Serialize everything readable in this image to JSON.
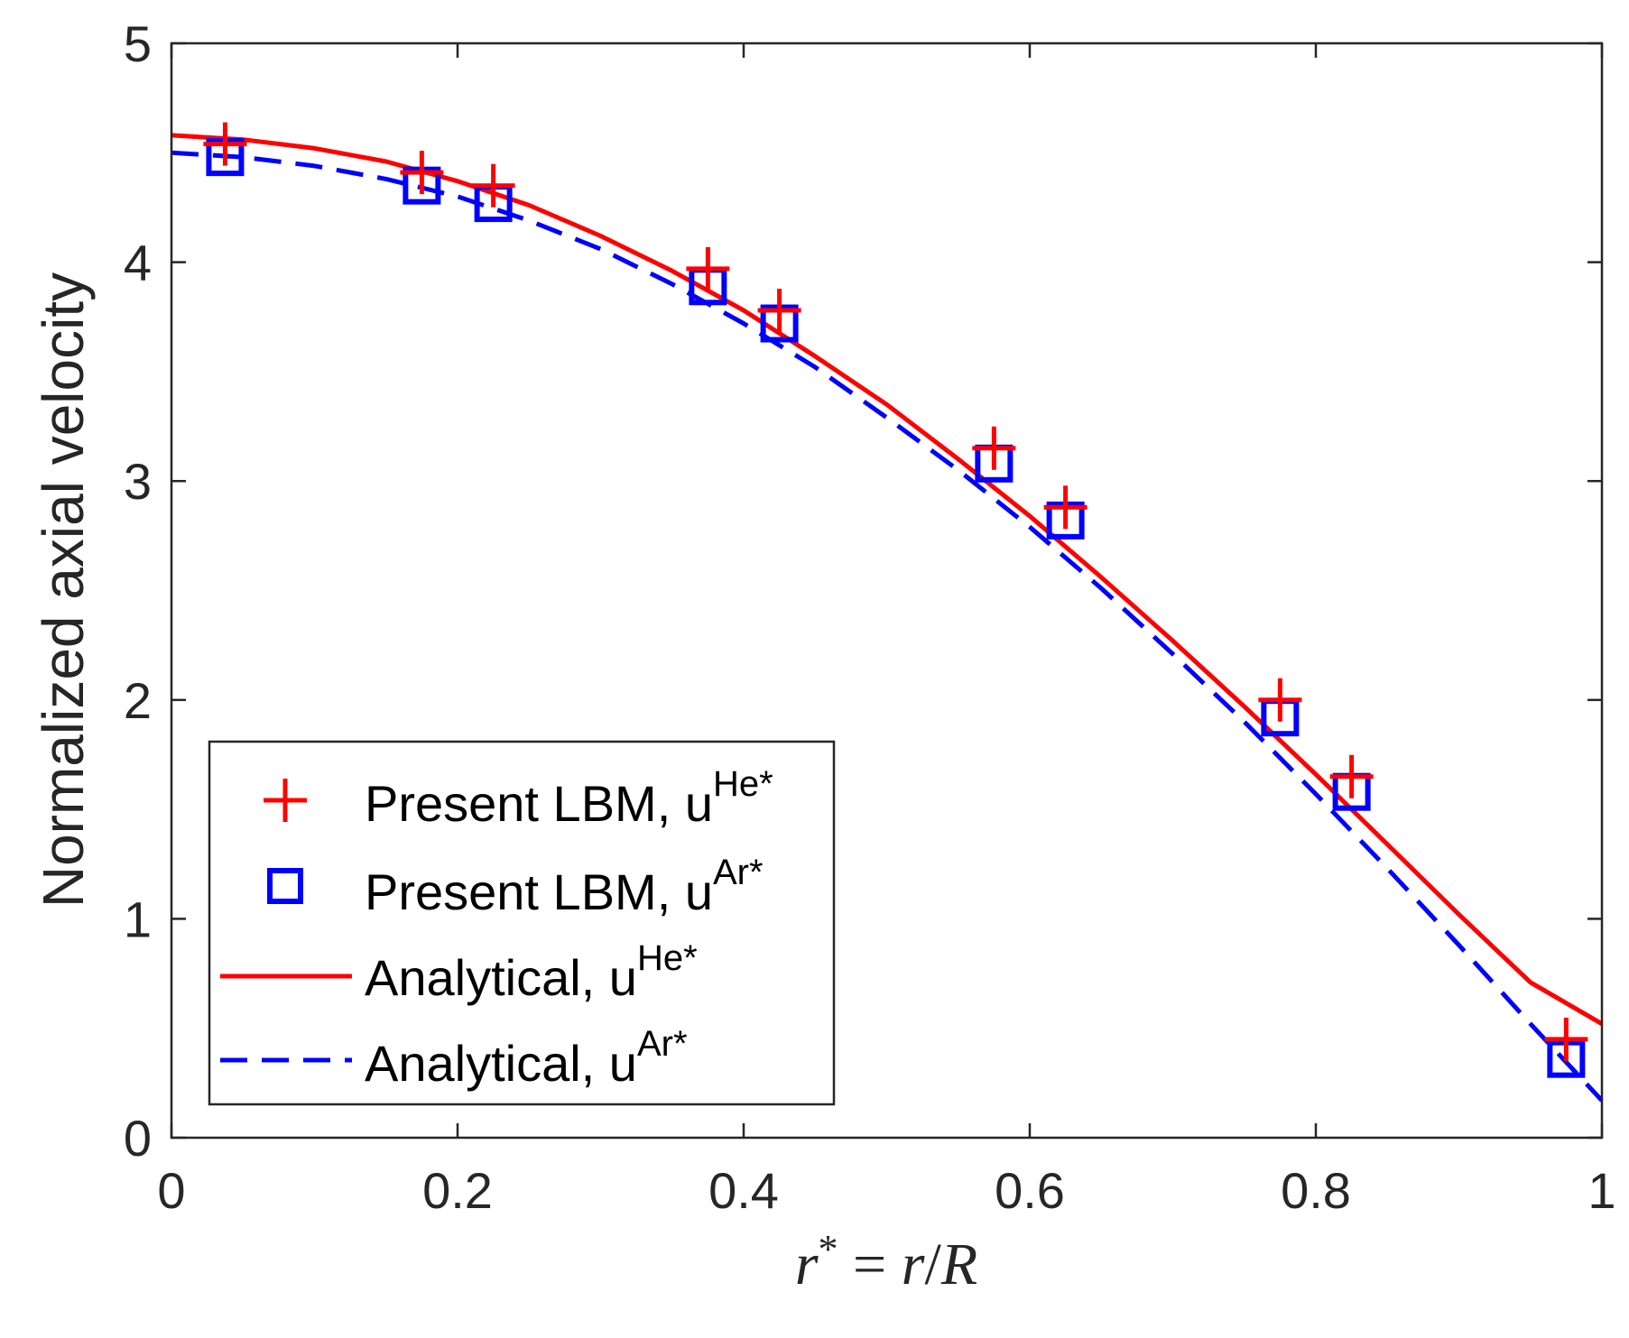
{
  "colors": {
    "he": "#ff0000",
    "ar": "#0000ff",
    "axis": "#262626",
    "legend_border": "#262626"
  },
  "chart_data": {
    "type": "line",
    "title": "",
    "xlabel": "r* = r/R",
    "ylabel": "Normalized axial velocity",
    "xlim": [
      0,
      1
    ],
    "ylim": [
      0,
      5
    ],
    "xticks": [
      0,
      0.2,
      0.4,
      0.6,
      0.8,
      1
    ],
    "yticks": [
      0,
      1,
      2,
      3,
      4,
      5
    ],
    "xtick_labels": [
      "0",
      "0.2",
      "0.4",
      "0.6",
      "0.8",
      "1"
    ],
    "ytick_labels": [
      "0",
      "1",
      "2",
      "3",
      "4",
      "5"
    ],
    "legend_position": "bottom-left",
    "grid": false,
    "series": [
      {
        "name": "Present LBM, u",
        "sup": "He*",
        "style": "plus-markers",
        "color": "#ff0000",
        "x": [
          0.0375,
          0.175,
          0.225,
          0.375,
          0.425,
          0.575,
          0.625,
          0.775,
          0.825,
          0.975
        ],
        "y": [
          4.54,
          4.41,
          4.35,
          3.97,
          3.78,
          3.15,
          2.88,
          2.0,
          1.65,
          0.45
        ]
      },
      {
        "name": "Present LBM, u",
        "sup": "Ar*",
        "style": "square-markers",
        "color": "#0000ff",
        "x": [
          0.0375,
          0.175,
          0.225,
          0.375,
          0.425,
          0.575,
          0.625,
          0.775,
          0.825,
          0.975
        ],
        "y": [
          4.48,
          4.35,
          4.27,
          3.89,
          3.72,
          3.08,
          2.82,
          1.92,
          1.58,
          0.36
        ]
      },
      {
        "name": "Analytical, u",
        "sup": "He*",
        "style": "solid",
        "color": "#ff0000",
        "x": [
          0,
          0.05,
          0.1,
          0.15,
          0.2,
          0.25,
          0.3,
          0.35,
          0.4,
          0.45,
          0.5,
          0.55,
          0.6,
          0.65,
          0.7,
          0.75,
          0.8,
          0.85,
          0.9,
          0.95,
          1.0
        ],
        "y": [
          4.58,
          4.56,
          4.52,
          4.46,
          4.37,
          4.26,
          4.12,
          3.96,
          3.78,
          3.57,
          3.35,
          3.1,
          2.84,
          2.56,
          2.27,
          1.97,
          1.66,
          1.34,
          1.02,
          0.71,
          0.52
        ]
      },
      {
        "name": "Analytical, u",
        "sup": "Ar*",
        "style": "dashed",
        "color": "#0000ff",
        "x": [
          0,
          0.05,
          0.1,
          0.15,
          0.2,
          0.25,
          0.3,
          0.35,
          0.4,
          0.45,
          0.5,
          0.55,
          0.6,
          0.65,
          0.7,
          0.75,
          0.8,
          0.85,
          0.9,
          0.95,
          1.0
        ],
        "y": [
          4.5,
          4.48,
          4.44,
          4.38,
          4.3,
          4.19,
          4.06,
          3.9,
          3.72,
          3.52,
          3.29,
          3.05,
          2.79,
          2.51,
          2.21,
          1.9,
          1.57,
          1.23,
          0.88,
          0.52,
          0.17
        ]
      }
    ]
  }
}
